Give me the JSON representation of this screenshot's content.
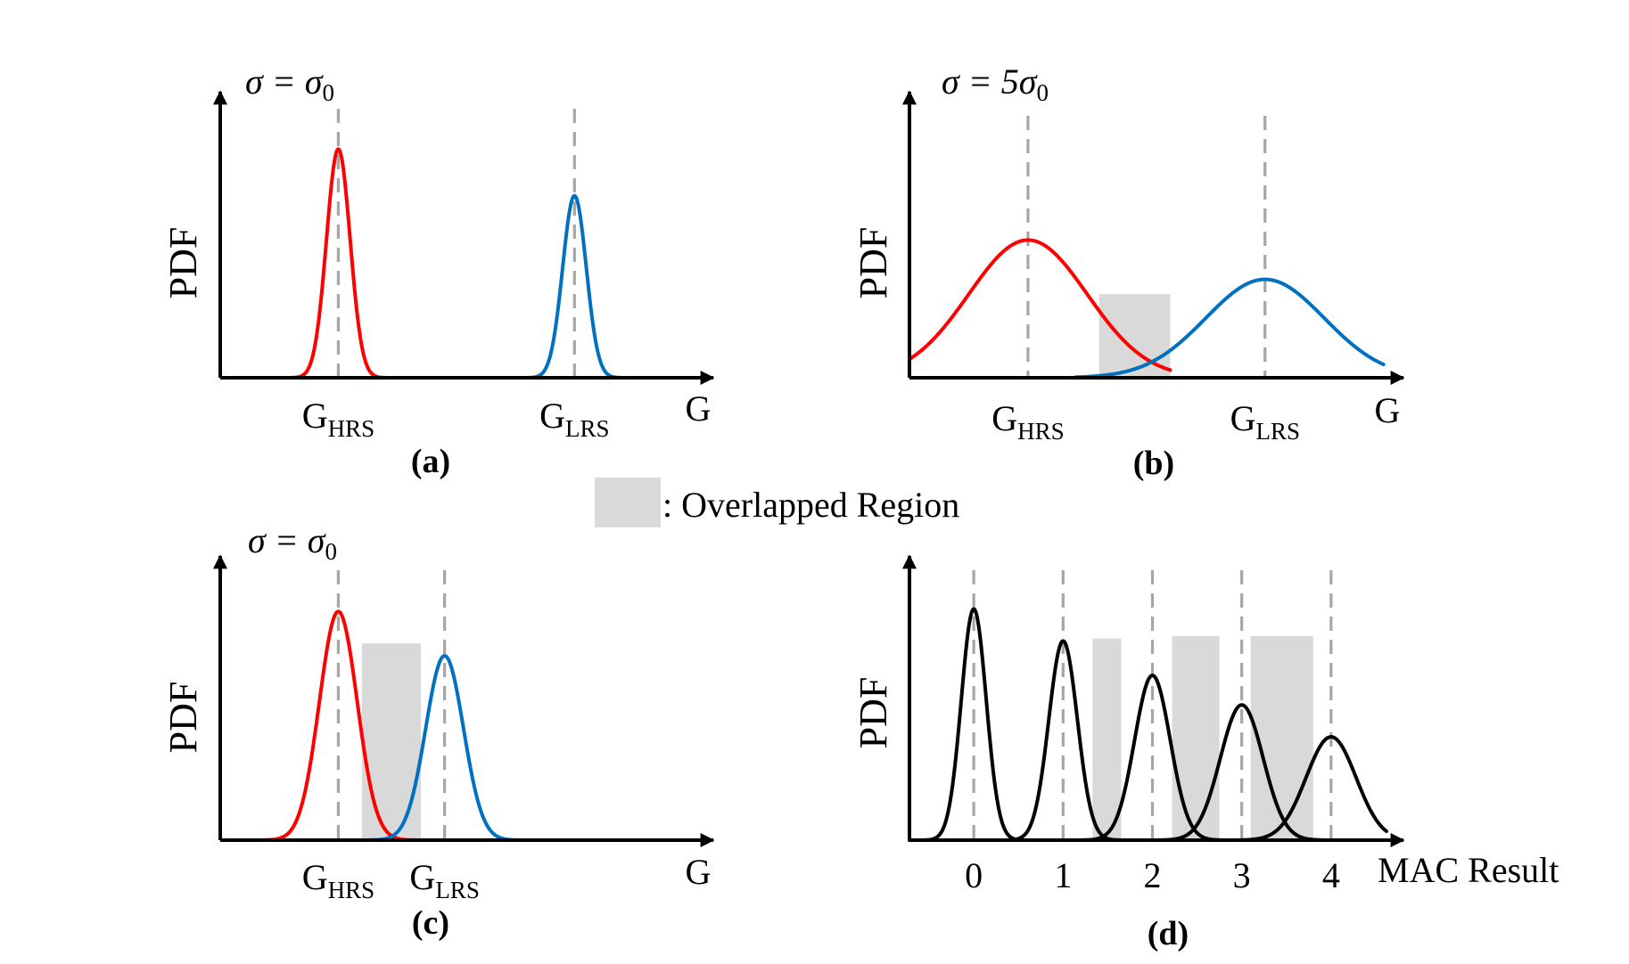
{
  "chart_data": [
    {
      "id": "a",
      "type": "line",
      "caption": "(a)",
      "title": "σ = σ0",
      "ylabel": "PDF",
      "xlabel": "G",
      "ticks": [
        {
          "main": "G",
          "sub": "HRS",
          "x": 1.0
        },
        {
          "main": "G",
          "sub": "LRS",
          "x": 3.0
        }
      ],
      "xlim": [
        0,
        4.1
      ],
      "ylim": [
        0,
        1.0
      ],
      "series": [
        {
          "name": "G_HRS",
          "color": "#ff0000",
          "mu": 1.0,
          "sigma": 0.1,
          "peak": 0.93,
          "xrange": [
            0.5,
            1.55
          ]
        },
        {
          "name": "G_LRS",
          "color": "#0070c0",
          "mu": 3.0,
          "sigma": 0.1,
          "peak": 0.74,
          "xrange": [
            2.45,
            3.55
          ]
        }
      ],
      "overlap_regions": []
    },
    {
      "id": "b",
      "type": "line",
      "caption": "(b)",
      "title": "σ = 5σ0",
      "ylabel": "PDF",
      "xlabel": "G",
      "ticks": [
        {
          "main": "G",
          "sub": "HRS",
          "x": 1.0
        },
        {
          "main": "G",
          "sub": "LRS",
          "x": 3.0
        }
      ],
      "xlim": [
        0,
        4.1
      ],
      "ylim": [
        0,
        1.0
      ],
      "series": [
        {
          "name": "G_HRS",
          "color": "#ff0000",
          "mu": 1.0,
          "sigma": 0.5,
          "peak": 0.56,
          "xrange": [
            0,
            2.2
          ]
        },
        {
          "name": "G_LRS",
          "color": "#0070c0",
          "mu": 3.0,
          "sigma": 0.5,
          "peak": 0.4,
          "xrange": [
            1.4,
            4.0
          ]
        }
      ],
      "overlap_regions": [
        [
          1.6,
          2.2
        ]
      ]
    },
    {
      "id": "c",
      "type": "line",
      "caption": "(c)",
      "title": "σ = σ0",
      "ylabel": "PDF",
      "xlabel": "G",
      "ticks": [
        {
          "main": "G",
          "sub": "HRS",
          "x": 1.0
        },
        {
          "main": "G",
          "sub": "LRS",
          "x": 1.9
        }
      ],
      "xlim": [
        0,
        4.1
      ],
      "ylim": [
        0,
        1.0
      ],
      "series": [
        {
          "name": "G_HRS",
          "color": "#ff0000",
          "mu": 1.0,
          "sigma": 0.16,
          "peak": 0.93,
          "xrange": [
            0.1,
            1.9
          ]
        },
        {
          "name": "G_LRS",
          "color": "#0070c0",
          "mu": 1.9,
          "sigma": 0.16,
          "peak": 0.75,
          "xrange": [
            1.0,
            2.9
          ]
        }
      ],
      "overlap_regions": [
        [
          1.2,
          1.7
        ]
      ]
    },
    {
      "id": "d",
      "type": "line",
      "caption": "(d)",
      "title": "",
      "ylabel": "PDF",
      "xlabel": "MAC Result",
      "ticks": [
        {
          "main": "0",
          "sub": "",
          "x": 0
        },
        {
          "main": "1",
          "sub": "",
          "x": 1
        },
        {
          "main": "2",
          "sub": "",
          "x": 2
        },
        {
          "main": "3",
          "sub": "",
          "x": 3
        },
        {
          "main": "4",
          "sub": "",
          "x": 4
        }
      ],
      "xlim": [
        -0.72,
        4.72
      ],
      "ylim": [
        0,
        1.0
      ],
      "series": [
        {
          "name": "MAC 0",
          "color": "#000000",
          "mu": 0,
          "sigma": 0.14,
          "peak": 0.94,
          "xrange": [
            -0.72,
            0.9
          ]
        },
        {
          "name": "MAC 1",
          "color": "#000000",
          "mu": 1,
          "sigma": 0.16,
          "peak": 0.81,
          "xrange": [
            0.2,
            1.9
          ]
        },
        {
          "name": "MAC 2",
          "color": "#000000",
          "mu": 2,
          "sigma": 0.2,
          "peak": 0.67,
          "xrange": [
            1.0,
            3.0
          ]
        },
        {
          "name": "MAC 3",
          "color": "#000000",
          "mu": 3,
          "sigma": 0.24,
          "peak": 0.55,
          "xrange": [
            1.9,
            4.1
          ]
        },
        {
          "name": "MAC 4",
          "color": "#000000",
          "mu": 4,
          "sigma": 0.28,
          "peak": 0.42,
          "xrange": [
            2.8,
            4.62
          ]
        }
      ],
      "overlap_regions": [
        [
          1.33,
          1.65
        ],
        [
          2.22,
          2.75
        ],
        [
          3.1,
          3.8
        ]
      ]
    }
  ],
  "legend": {
    "label": ": Overlapped Region",
    "color": "#d9d9d9"
  }
}
